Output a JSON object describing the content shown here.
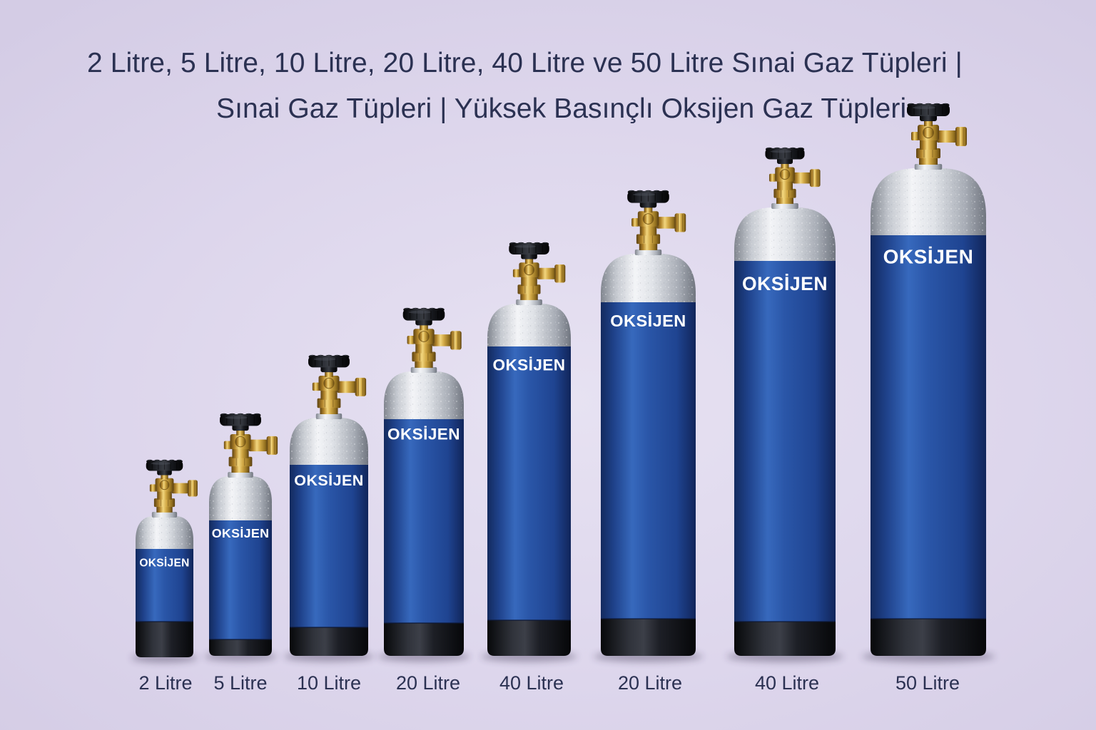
{
  "title": {
    "line1": "2 Litre, 5 Litre, 10 Litre, 20 Litre, 40 Litre ve 50 Litre Sınai Gaz Tüpleri |",
    "line2": "Sınai Gaz Tüpleri | Yüksek Basınçlı Oksijen Gaz Tüpleri"
  },
  "colors": {
    "background": "#ddd6ec",
    "text": "#2b3152",
    "cylinder_body": "#2a56a8",
    "cylinder_shoulder": "#dfe2e7",
    "cylinder_base": "#1d1f26",
    "valve_brass": "#d1a845",
    "handwheel": "#16181d",
    "brand_label": "#ffffff"
  },
  "cylinders": [
    {
      "capacity_label": "2 Litre",
      "brand": "OKSİJEN"
    },
    {
      "capacity_label": "5 Litre",
      "brand": "OKSİJEN"
    },
    {
      "capacity_label": "10 Litre",
      "brand": "OKSİJEN"
    },
    {
      "capacity_label": "20 Litre",
      "brand": "OKSİJEN"
    },
    {
      "capacity_label": "40 Litre",
      "brand": "OKSİJEN"
    },
    {
      "capacity_label": "20 Litre",
      "brand": "OKSİJEN"
    },
    {
      "capacity_label": "40 Litre",
      "brand": "OKSİJEN"
    },
    {
      "capacity_label": "50 Litre",
      "brand": "OKSİJEN"
    }
  ]
}
